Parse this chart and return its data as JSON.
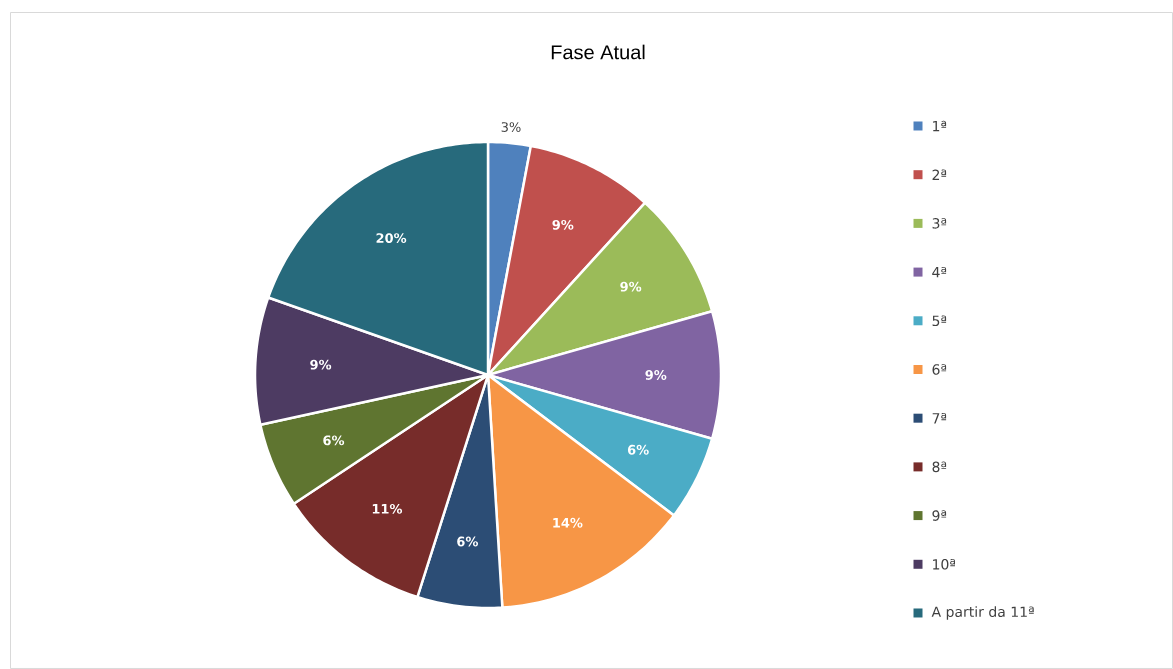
{
  "chart_data": {
    "type": "pie",
    "title": "Fase Atual",
    "categories": [
      "1ª",
      "2ª",
      "3ª",
      "4ª",
      "5ª",
      "6ª",
      "7ª",
      "8ª",
      "9ª",
      "10ª",
      "A partir da 11ª"
    ],
    "values": [
      3,
      9,
      9,
      9,
      6,
      14,
      6,
      11,
      6,
      9,
      20
    ],
    "value_labels": [
      "3%",
      "9%",
      "9%",
      "9%",
      "6%",
      "14%",
      "6%",
      "11%",
      "6%",
      "9%",
      "20%"
    ],
    "colors": [
      "#4f81bd",
      "#c0504d",
      "#9bbb59",
      "#8064a2",
      "#4bacc6",
      "#f79646",
      "#2c4d75",
      "#772c2a",
      "#5f7530",
      "#4d3b62",
      "#276a7c"
    ],
    "legend": "right"
  }
}
